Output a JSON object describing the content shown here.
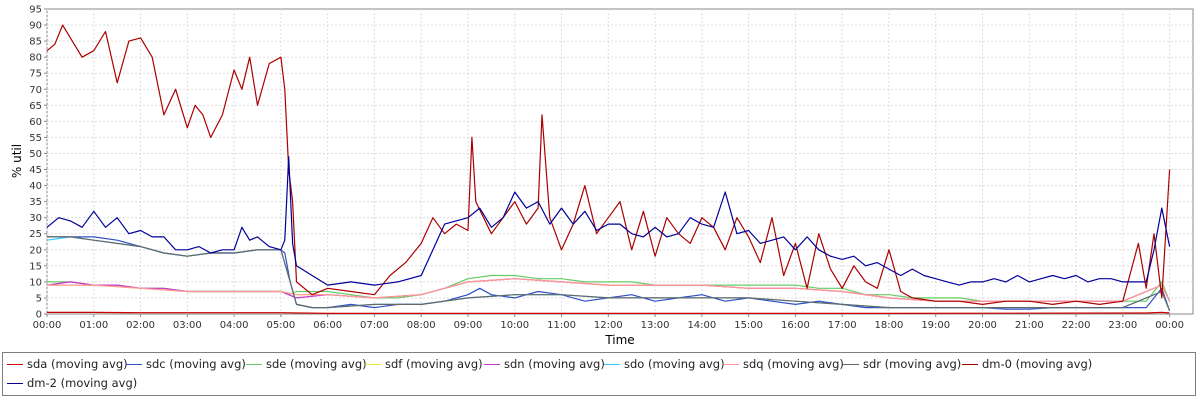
{
  "chart_data": {
    "type": "line",
    "xlabel": "Time",
    "ylabel": "% util",
    "ylim": [
      0,
      95
    ],
    "xlim": [
      "00:00",
      "24:30"
    ],
    "grid": true,
    "legend_placement": "bottom",
    "x_ticks": [
      "00:00",
      "01:00",
      "02:00",
      "03:00",
      "04:00",
      "05:00",
      "06:00",
      "07:00",
      "08:00",
      "09:00",
      "10:00",
      "11:00",
      "12:00",
      "13:00",
      "14:00",
      "15:00",
      "16:00",
      "17:00",
      "18:00",
      "19:00",
      "20:00",
      "21:00",
      "22:00",
      "23:00",
      "00:00"
    ],
    "y_ticks": [
      0,
      5,
      10,
      15,
      20,
      25,
      30,
      35,
      40,
      45,
      50,
      55,
      60,
      65,
      70,
      75,
      80,
      85,
      90,
      95
    ],
    "series": [
      {
        "name": "sda (moving avg)",
        "color": "#cc0000",
        "x": [
          "00:00",
          "01:00",
          "02:00",
          "03:00",
          "04:00",
          "05:00",
          "06:00",
          "08:00",
          "12:00",
          "18:00",
          "23:30",
          "23:50",
          "24:00"
        ],
        "y": [
          0.5,
          0.5,
          0.4,
          0.4,
          0.4,
          0.4,
          0.2,
          0.2,
          0.2,
          0.2,
          0.3,
          0.5,
          0.3
        ]
      },
      {
        "name": "sdc (moving avg)",
        "color": "#3050c8",
        "x": [
          "00:00",
          "00:30",
          "01:00",
          "01:30",
          "02:00",
          "02:30",
          "03:00",
          "03:30",
          "04:00",
          "04:30",
          "05:00",
          "05:05",
          "05:12",
          "05:20",
          "05:40",
          "06:00",
          "06:30",
          "07:00",
          "07:30",
          "08:00",
          "08:30",
          "09:00",
          "09:15",
          "09:30",
          "10:00",
          "10:30",
          "11:00",
          "11:30",
          "12:00",
          "12:30",
          "13:00",
          "13:30",
          "14:00",
          "14:30",
          "15:00",
          "15:30",
          "16:00",
          "16:30",
          "17:00",
          "17:30",
          "18:00",
          "18:30",
          "19:00",
          "19:30",
          "20:00",
          "20:30",
          "21:00",
          "21:30",
          "22:00",
          "22:30",
          "23:00",
          "23:30",
          "23:50",
          "24:00"
        ],
        "y": [
          24,
          24,
          24,
          23,
          21,
          19,
          18,
          19,
          19,
          20,
          20,
          19,
          10,
          3,
          2,
          2,
          3,
          2,
          3,
          3,
          4,
          6,
          8,
          6,
          5,
          7,
          6,
          4,
          5,
          6,
          4,
          5,
          6,
          4,
          5,
          4,
          3,
          4,
          3,
          2,
          2,
          2,
          2,
          2,
          2,
          1.5,
          1.5,
          2,
          2,
          2,
          2,
          2,
          8,
          1
        ]
      },
      {
        "name": "sde (moving avg)",
        "color": "#66cc66",
        "x": [
          "00:00",
          "00:30",
          "01:00",
          "01:30",
          "02:00",
          "02:30",
          "03:00",
          "03:30",
          "04:00",
          "04:30",
          "05:00",
          "05:10",
          "05:20",
          "06:00",
          "06:30",
          "07:00",
          "07:30",
          "08:00",
          "08:30",
          "09:00",
          "09:30",
          "10:00",
          "10:30",
          "11:00",
          "11:30",
          "12:00",
          "12:30",
          "13:00",
          "13:30",
          "14:00",
          "14:30",
          "15:00",
          "15:30",
          "16:00",
          "16:30",
          "17:00",
          "17:30",
          "18:00",
          "18:30",
          "19:00",
          "19:30",
          "20:00",
          "20:30",
          "21:00",
          "21:30",
          "22:00",
          "22:30",
          "23:00",
          "23:30",
          "23:50",
          "24:00"
        ],
        "y": [
          10,
          10,
          9,
          9,
          8,
          8,
          7,
          7,
          7,
          7,
          7,
          6,
          7,
          7,
          6,
          5,
          5,
          6,
          8,
          11,
          12,
          12,
          11,
          11,
          10,
          10,
          10,
          9,
          9,
          9,
          9,
          9,
          9,
          9,
          8,
          8,
          6,
          6,
          5,
          5,
          5,
          4,
          4,
          4,
          4,
          4,
          4,
          4,
          4,
          10,
          4
        ]
      },
      {
        "name": "sdf (moving avg)",
        "color": "#e6e633",
        "x": [
          "00:00",
          "01:00",
          "02:00",
          "03:00",
          "04:00",
          "05:00",
          "05:20",
          "06:00",
          "07:00",
          "08:00",
          "09:00",
          "10:00",
          "11:00",
          "12:00",
          "13:00",
          "14:00",
          "15:00",
          "16:00",
          "17:00",
          "18:00",
          "19:00",
          "20:00",
          "21:00",
          "22:00",
          "23:00",
          "23:50",
          "24:00"
        ],
        "y": [
          9,
          9,
          8,
          7,
          7,
          7,
          6,
          6,
          5,
          6,
          10,
          11,
          10,
          9,
          9,
          9,
          8,
          8,
          7,
          5,
          4,
          4,
          4,
          4,
          4,
          9,
          4
        ]
      },
      {
        "name": "sdn (moving avg)",
        "color": "#cc33cc",
        "x": [
          "00:00",
          "00:30",
          "01:00",
          "01:30",
          "02:00",
          "02:30",
          "03:00",
          "03:30",
          "04:00",
          "04:30",
          "05:00",
          "05:10",
          "05:20",
          "06:00",
          "07:00",
          "08:00",
          "09:00",
          "10:00",
          "11:00",
          "12:00",
          "13:00",
          "14:00",
          "15:00",
          "16:00",
          "17:00",
          "18:00",
          "19:00",
          "20:00",
          "21:00",
          "22:00",
          "23:00",
          "23:50",
          "24:00"
        ],
        "y": [
          9,
          10,
          9,
          9,
          8,
          8,
          7,
          7,
          7,
          7,
          7,
          6,
          5,
          6,
          5,
          6,
          10,
          11,
          10,
          9,
          9,
          9,
          8,
          8,
          7,
          5,
          4,
          4,
          4,
          4,
          4,
          9,
          4
        ]
      },
      {
        "name": "sdo (moving avg)",
        "color": "#33ccff",
        "x": [
          "00:00",
          "00:30",
          "01:00",
          "01:30",
          "02:00",
          "02:30",
          "03:00",
          "03:30",
          "04:00",
          "04:30",
          "05:00",
          "05:12",
          "05:20",
          "05:40",
          "06:00",
          "07:00",
          "08:00",
          "09:00",
          "10:00",
          "11:00",
          "12:00",
          "13:00",
          "14:00",
          "15:00",
          "16:00",
          "17:00",
          "18:00",
          "19:00",
          "20:00",
          "21:00",
          "22:00",
          "23:00",
          "23:50",
          "24:00"
        ],
        "y": [
          23,
          24,
          23,
          22,
          21,
          19,
          18,
          19,
          19,
          20,
          20,
          10,
          3,
          2,
          2,
          3,
          3,
          5,
          6,
          6,
          5,
          5,
          5,
          5,
          4,
          3,
          2,
          2,
          2,
          2,
          2,
          2,
          7,
          1
        ]
      },
      {
        "name": "sdq (moving avg)",
        "color": "#ff9999",
        "x": [
          "00:00",
          "01:00",
          "02:00",
          "03:00",
          "04:00",
          "05:00",
          "05:20",
          "06:00",
          "07:00",
          "08:00",
          "09:00",
          "10:00",
          "11:00",
          "12:00",
          "13:00",
          "14:00",
          "15:00",
          "16:00",
          "17:00",
          "18:00",
          "19:00",
          "20:00",
          "21:00",
          "22:00",
          "23:00",
          "23:50",
          "24:00"
        ],
        "y": [
          9,
          9,
          8,
          7,
          7,
          7,
          6,
          6,
          5,
          6,
          10,
          11,
          10,
          9,
          9,
          9,
          8,
          8,
          7,
          5,
          4,
          4,
          4,
          4,
          4,
          9,
          4
        ]
      },
      {
        "name": "sdr (moving avg)",
        "color": "#666666",
        "x": [
          "00:00",
          "00:30",
          "01:00",
          "01:30",
          "02:00",
          "02:30",
          "03:00",
          "03:30",
          "04:00",
          "04:30",
          "05:00",
          "05:12",
          "05:20",
          "05:40",
          "06:00",
          "07:00",
          "08:00",
          "09:00",
          "10:00",
          "11:00",
          "12:00",
          "13:00",
          "14:00",
          "15:00",
          "16:00",
          "17:00",
          "18:00",
          "19:00",
          "20:00",
          "21:00",
          "22:00",
          "23:00",
          "23:50",
          "24:00"
        ],
        "y": [
          24,
          24,
          23,
          22,
          21,
          19,
          18,
          19,
          19,
          20,
          20,
          10,
          3,
          2,
          2,
          3,
          3,
          5,
          6,
          6,
          5,
          5,
          5,
          5,
          4,
          3,
          2,
          2,
          2,
          2,
          2,
          2,
          7,
          1
        ]
      },
      {
        "name": "dm-0 (moving avg)",
        "color": "#aa0000",
        "x": [
          "00:00",
          "00:10",
          "00:20",
          "00:30",
          "00:45",
          "01:00",
          "01:15",
          "01:30",
          "01:45",
          "02:00",
          "02:15",
          "02:30",
          "02:45",
          "03:00",
          "03:10",
          "03:20",
          "03:30",
          "03:45",
          "04:00",
          "04:10",
          "04:20",
          "04:30",
          "04:45",
          "05:00",
          "05:05",
          "05:10",
          "05:15",
          "05:20",
          "05:40",
          "06:00",
          "06:30",
          "07:00",
          "07:20",
          "07:40",
          "08:00",
          "08:15",
          "08:30",
          "08:45",
          "09:00",
          "09:05",
          "09:10",
          "09:20",
          "09:30",
          "09:45",
          "10:00",
          "10:15",
          "10:30",
          "10:35",
          "10:45",
          "11:00",
          "11:15",
          "11:30",
          "11:45",
          "12:00",
          "12:15",
          "12:30",
          "12:45",
          "13:00",
          "13:15",
          "13:30",
          "13:45",
          "14:00",
          "14:15",
          "14:30",
          "14:45",
          "15:00",
          "15:15",
          "15:30",
          "15:45",
          "16:00",
          "16:15",
          "16:30",
          "16:45",
          "17:00",
          "17:15",
          "17:30",
          "17:45",
          "18:00",
          "18:15",
          "18:30",
          "19:00",
          "19:30",
          "20:00",
          "20:30",
          "21:00",
          "21:30",
          "22:00",
          "22:30",
          "23:00",
          "23:20",
          "23:30",
          "23:40",
          "23:50",
          "24:00"
        ],
        "y": [
          82,
          84,
          90,
          86,
          80,
          82,
          88,
          72,
          85,
          86,
          80,
          62,
          70,
          58,
          65,
          62,
          55,
          62,
          76,
          70,
          80,
          65,
          78,
          80,
          70,
          45,
          35,
          10,
          6,
          8,
          7,
          6,
          12,
          16,
          22,
          30,
          25,
          28,
          26,
          55,
          35,
          30,
          25,
          30,
          35,
          28,
          33,
          62,
          30,
          20,
          28,
          40,
          25,
          30,
          35,
          20,
          32,
          18,
          30,
          25,
          22,
          30,
          27,
          20,
          30,
          24,
          16,
          30,
          12,
          22,
          8,
          25,
          14,
          8,
          15,
          10,
          8,
          20,
          7,
          5,
          4,
          4,
          3,
          4,
          4,
          3,
          4,
          3,
          4,
          22,
          8,
          25,
          5,
          45
        ]
      },
      {
        "name": "dm-2 (moving avg)",
        "color": "#000099",
        "x": [
          "00:00",
          "00:15",
          "00:30",
          "00:45",
          "01:00",
          "01:15",
          "01:30",
          "01:45",
          "02:00",
          "02:15",
          "02:30",
          "02:45",
          "03:00",
          "03:15",
          "03:30",
          "03:45",
          "04:00",
          "04:10",
          "04:20",
          "04:30",
          "04:45",
          "05:00",
          "05:05",
          "05:10",
          "05:15",
          "05:20",
          "05:40",
          "06:00",
          "06:30",
          "07:00",
          "07:30",
          "08:00",
          "08:30",
          "09:00",
          "09:15",
          "09:30",
          "09:45",
          "10:00",
          "10:15",
          "10:30",
          "10:45",
          "11:00",
          "11:15",
          "11:30",
          "11:45",
          "12:00",
          "12:15",
          "12:30",
          "12:45",
          "13:00",
          "13:15",
          "13:30",
          "13:45",
          "14:00",
          "14:15",
          "14:30",
          "14:45",
          "15:00",
          "15:15",
          "15:30",
          "15:45",
          "16:00",
          "16:15",
          "16:30",
          "16:45",
          "17:00",
          "17:15",
          "17:30",
          "17:45",
          "18:00",
          "18:15",
          "18:30",
          "18:45",
          "19:00",
          "19:15",
          "19:30",
          "19:45",
          "20:00",
          "20:15",
          "20:30",
          "20:45",
          "21:00",
          "21:15",
          "21:30",
          "21:45",
          "22:00",
          "22:15",
          "22:30",
          "22:45",
          "23:00",
          "23:15",
          "23:30",
          "23:40",
          "23:50",
          "24:00"
        ],
        "y": [
          27,
          30,
          29,
          27,
          32,
          27,
          30,
          25,
          26,
          24,
          24,
          20,
          20,
          21,
          19,
          20,
          20,
          27,
          23,
          24,
          21,
          20,
          23,
          49,
          22,
          15,
          12,
          9,
          10,
          9,
          10,
          12,
          28,
          30,
          33,
          27,
          30,
          38,
          33,
          35,
          28,
          33,
          28,
          32,
          26,
          28,
          28,
          25,
          24,
          27,
          24,
          25,
          30,
          28,
          27,
          38,
          25,
          26,
          22,
          23,
          24,
          20,
          24,
          20,
          18,
          17,
          18,
          15,
          16,
          14,
          12,
          14,
          12,
          11,
          10,
          9,
          10,
          10,
          11,
          10,
          12,
          10,
          11,
          12,
          11,
          12,
          10,
          11,
          11,
          10,
          10,
          10,
          20,
          33,
          21
        ]
      }
    ]
  }
}
